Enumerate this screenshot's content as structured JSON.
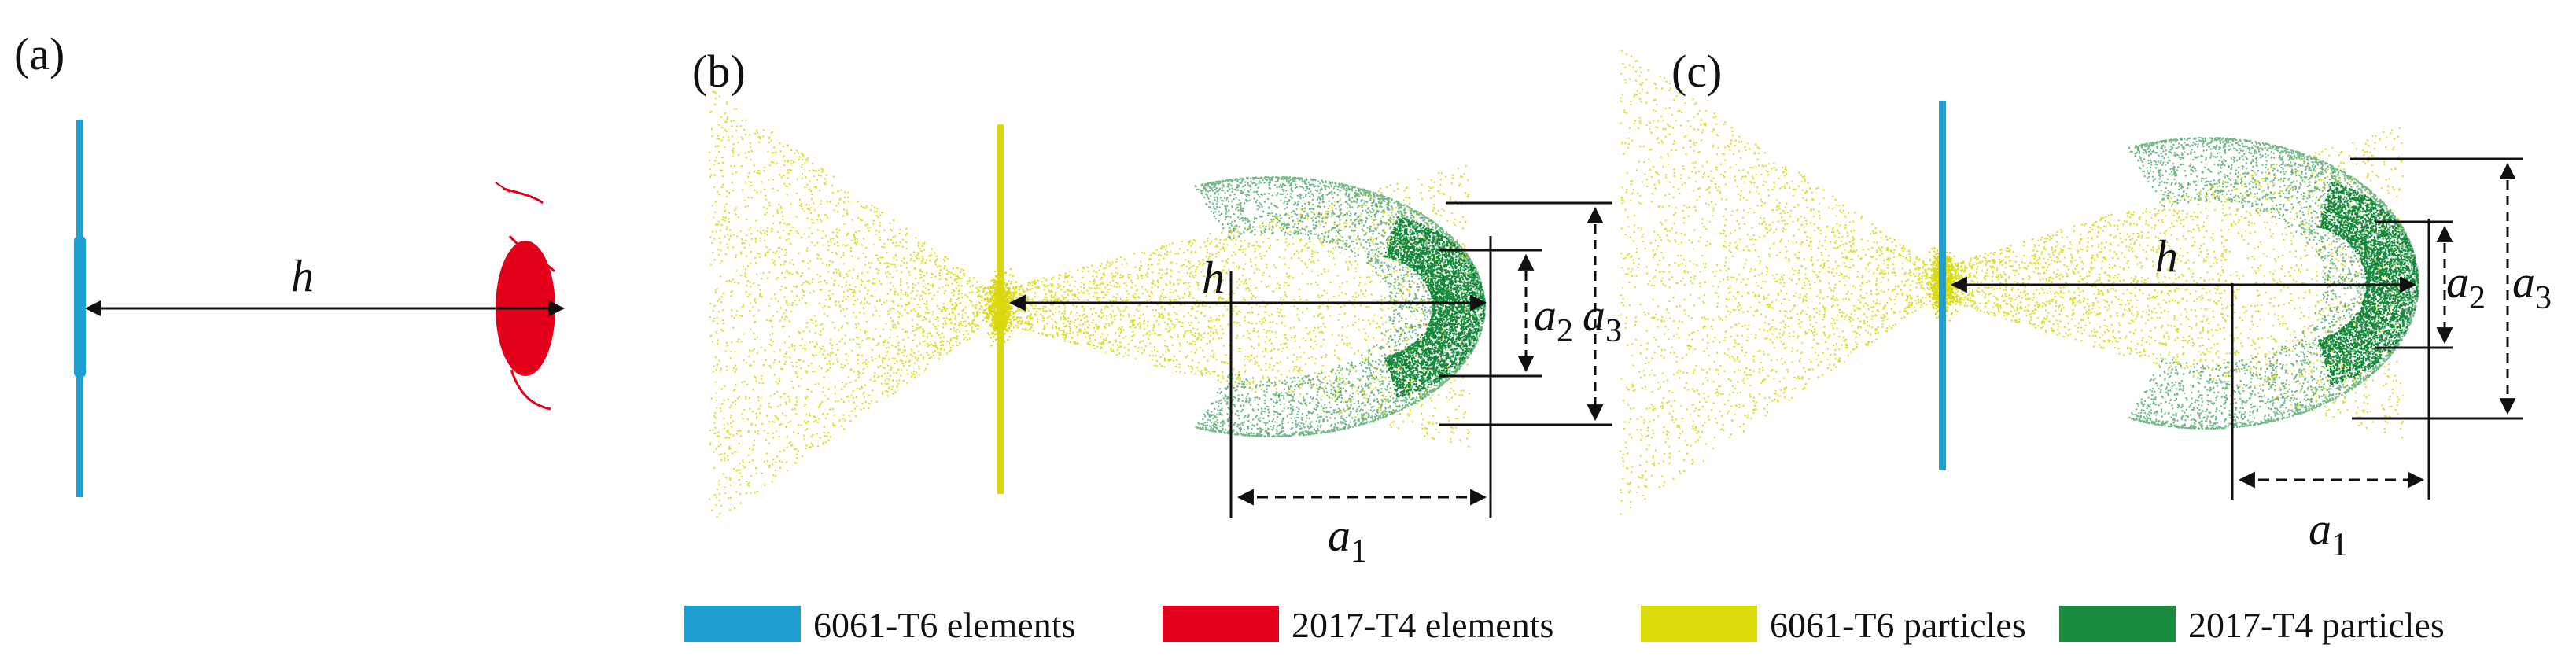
{
  "panels": [
    {
      "id": "a",
      "label": "(a)"
    },
    {
      "id": "b",
      "label": "(b)"
    },
    {
      "id": "c",
      "label": "(c)"
    }
  ],
  "dimensions": {
    "h": "h",
    "a1": {
      "base": "a",
      "sub": "1"
    },
    "a2": {
      "base": "a",
      "sub": "2"
    },
    "a3": {
      "base": "a",
      "sub": "3"
    }
  },
  "legend": [
    {
      "label": "6061-T6 elements",
      "color": "#1e9fd2"
    },
    {
      "label": "2017-T4 elements",
      "color": "#e3001b"
    },
    {
      "label": "6061-T6 particles",
      "color": "#dcdc0a"
    },
    {
      "label": "2017-T4 particles",
      "color": "#1a8a3c"
    }
  ],
  "colors": {
    "yellow_particles": "#d8d80c",
    "green_particles": "#14883a",
    "blue_plate": "#1e9fd2",
    "red_projectile": "#e3001b"
  }
}
